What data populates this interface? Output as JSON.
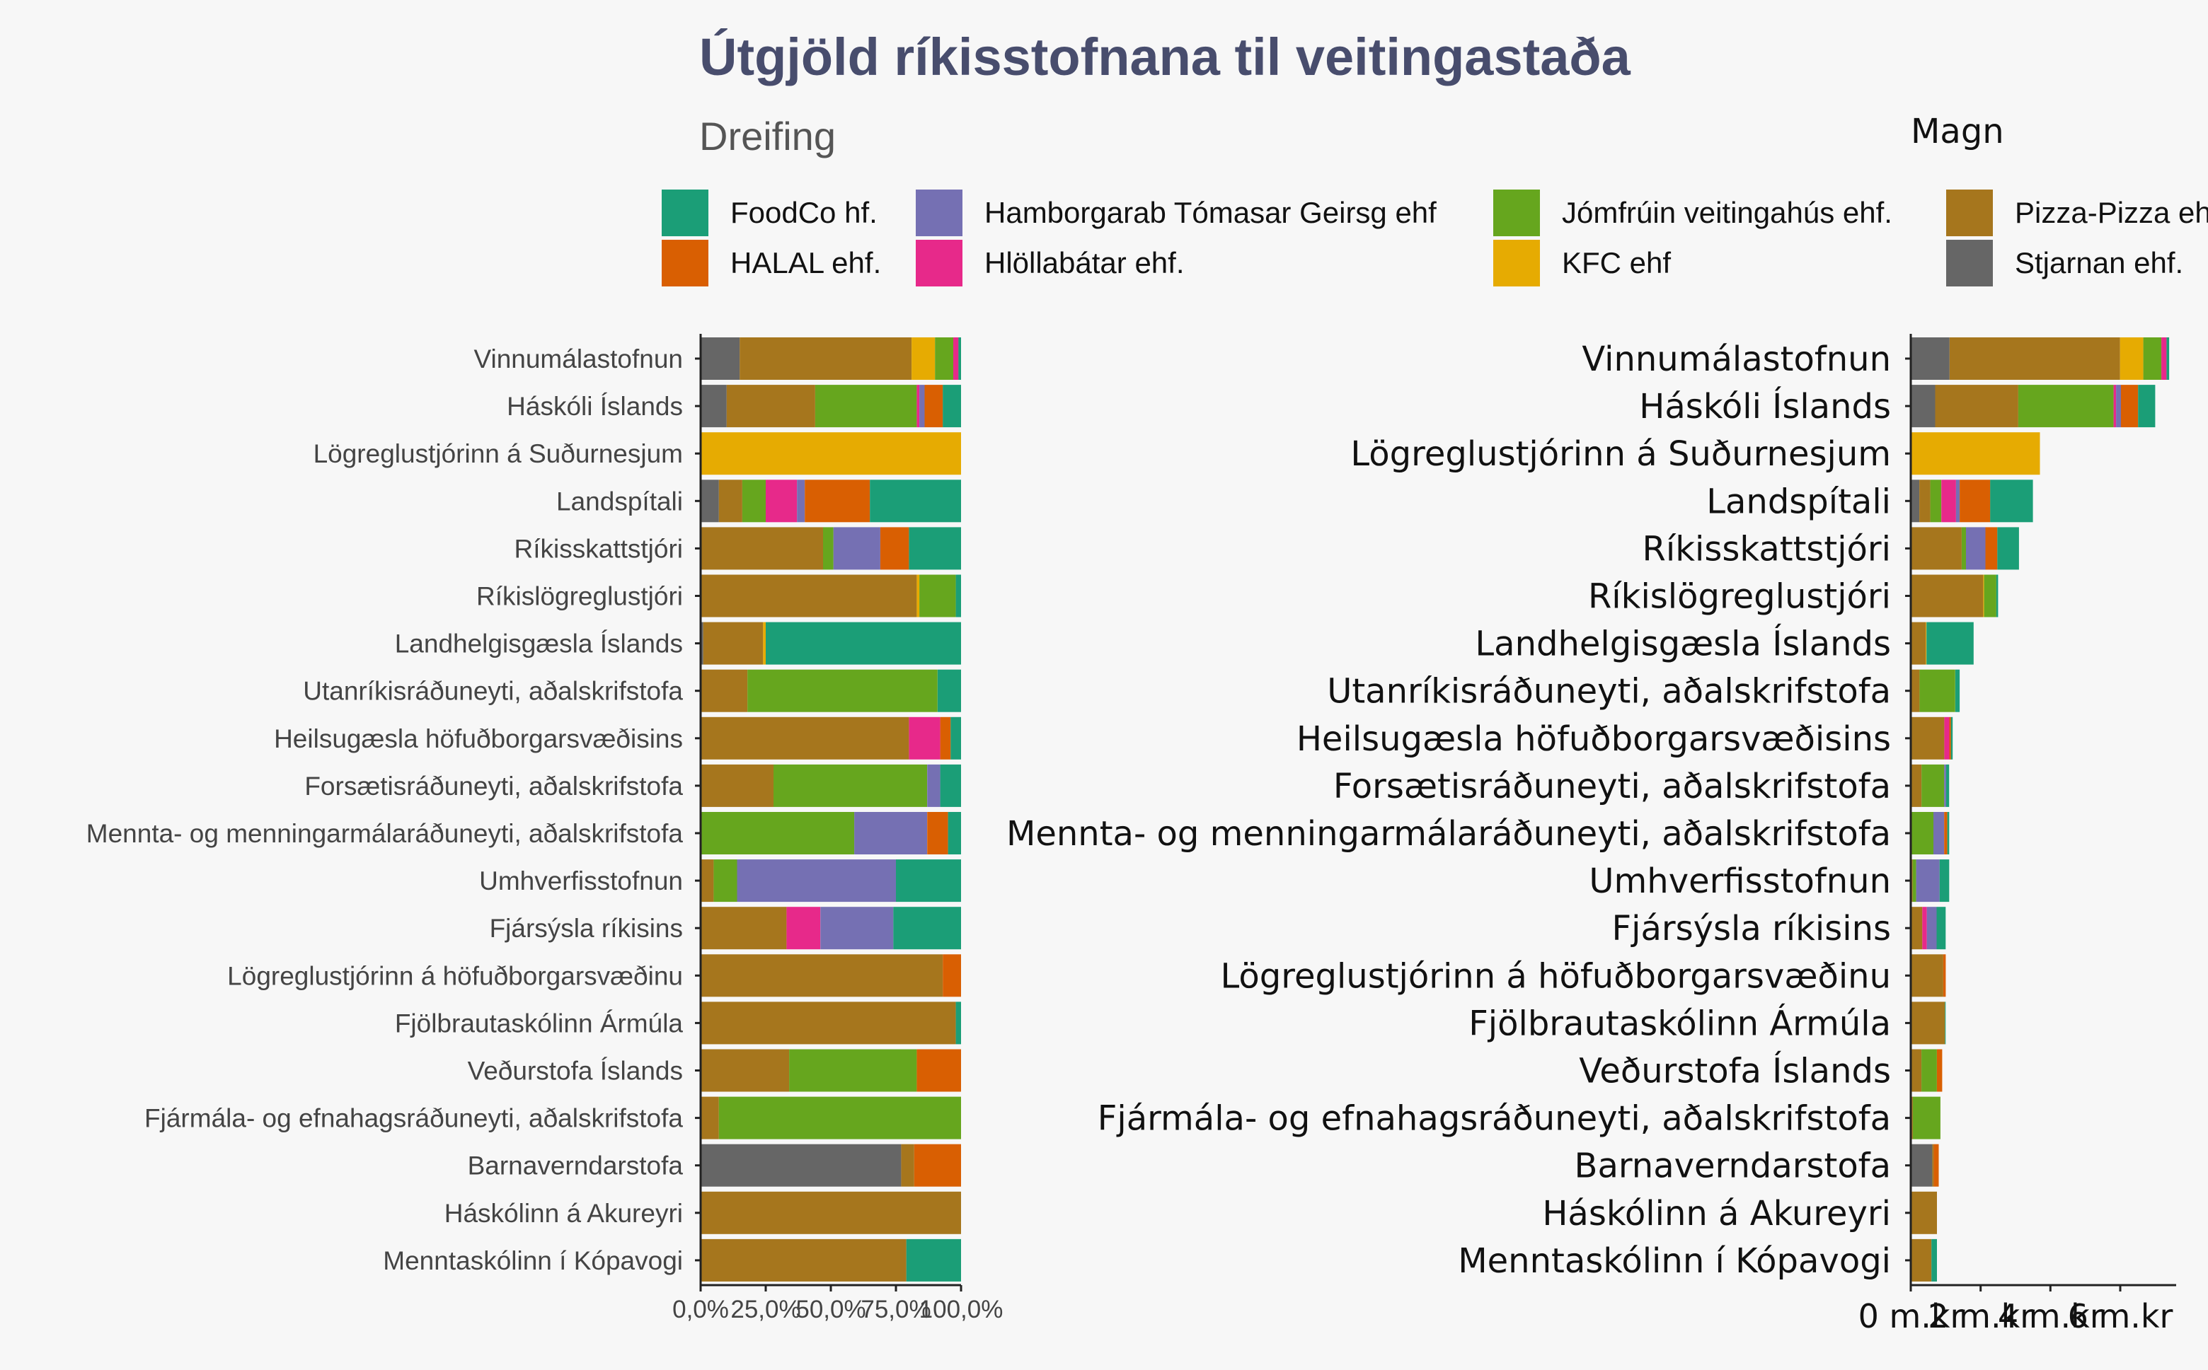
{
  "chart_data": [
    {
      "type": "bar",
      "orientation": "horizontal",
      "stacked": true,
      "normalized": true,
      "title": "Útgjöld ríkisstofnana til veitingastaða",
      "subtitle": "Dreifing",
      "categories": [
        "Vinnumálastofnun",
        "Háskóli Íslands",
        "Lögreglustjórinn á Suðurnesjum",
        "Landspítali",
        "Ríkisskattstjóri",
        "Ríkislögreglustjóri",
        "Landhelgisgæsla Íslands",
        "Utanríkisráðuneyti, aðalskrifstofa",
        "Heilsugæsla höfuðborgarsvæðisins",
        "Forsætisráðuneyti, aðalskrifstofa",
        "Mennta- og menningarmálaráðuneyti, aðalskrifstofa",
        "Umhverfisstofnun",
        "Fjársýsla ríkisins",
        "Lögreglustjórinn á höfuðborgarsvæðinu",
        "Fjölbrautaskólinn Ármúla",
        "Veðurstofa Íslands",
        "Fjármála- og efnahagsráðuneyti, aðalskrifstofa",
        "Barnaverndarstofa",
        "Háskólinn á Akureyri",
        "Menntaskólinn í Kópavogi"
      ],
      "stack_order": [
        "Stjarnan ehf.",
        "Pizza-Pizza ehf",
        "KFC ehf",
        "Jómfrúin veitingahús ehf.",
        "Hlöllabátar ehf.",
        "Hamborgarab Tómasar Geirsg ehf",
        "HALAL ehf.",
        "FoodCo hf."
      ],
      "series": [
        {
          "name": "Stjarnan ehf.",
          "values": [
            0.15,
            0.1,
            0,
            0.07,
            0,
            0,
            0.01,
            0,
            0,
            0,
            0,
            0,
            0,
            0,
            0,
            0,
            0,
            0.77,
            0,
            0
          ]
        },
        {
          "name": "Pizza-Pizza ehf",
          "values": [
            0.66,
            0.34,
            0,
            0.09,
            0.47,
            0.83,
            0.23,
            0.18,
            0.8,
            0.28,
            0,
            0.05,
            0.33,
            0.93,
            0.98,
            0.34,
            0.07,
            0.05,
            1.0,
            0.79
          ]
        },
        {
          "name": "KFC ehf",
          "values": [
            0.09,
            0,
            1.0,
            0,
            0,
            0.01,
            0.01,
            0,
            0,
            0,
            0,
            0,
            0,
            0,
            0,
            0,
            0,
            0,
            0,
            0
          ]
        },
        {
          "name": "Jómfrúin veitingahús ehf.",
          "values": [
            0.07,
            0.39,
            0,
            0.09,
            0.04,
            0.14,
            0,
            0.73,
            0,
            0.59,
            0.59,
            0.09,
            0,
            0,
            0,
            0.49,
            0.93,
            0,
            0,
            0
          ]
        },
        {
          "name": "Hlöllabátar ehf.",
          "values": [
            0.02,
            0.01,
            0,
            0.12,
            0,
            0,
            0,
            0,
            0.12,
            0,
            0,
            0,
            0.13,
            0,
            0,
            0,
            0,
            0,
            0,
            0
          ]
        },
        {
          "name": "Hamborgarab Tómasar Geirsg ehf",
          "values": [
            0,
            0.02,
            0,
            0.03,
            0.18,
            0,
            0,
            0,
            0,
            0.05,
            0.28,
            0.61,
            0.28,
            0,
            0,
            0,
            0,
            0,
            0,
            0
          ]
        },
        {
          "name": "HALAL ehf.",
          "values": [
            0,
            0.07,
            0,
            0.25,
            0.11,
            0,
            0,
            0,
            0.04,
            0,
            0.08,
            0,
            0,
            0.07,
            0,
            0.17,
            0,
            0.18,
            0,
            0
          ]
        },
        {
          "name": "FoodCo hf.",
          "values": [
            0.01,
            0.07,
            0,
            0.35,
            0.2,
            0.02,
            0.75,
            0.09,
            0.04,
            0.08,
            0.05,
            0.25,
            0.26,
            0,
            0.02,
            0,
            0,
            0,
            0,
            0.21
          ]
        }
      ],
      "xlim": [
        0,
        1
      ],
      "x_ticks": [
        "0,0%",
        "25,0%",
        "50,0%",
        "75,0%",
        "100,0%"
      ],
      "legend_position": "top"
    },
    {
      "type": "bar",
      "orientation": "horizontal",
      "stacked": true,
      "title": "Magn",
      "unit": "m.kr",
      "categories_same_as": 0,
      "categories": [
        "Vinnumálastofnun",
        "Háskóli Íslands",
        "Lögreglustjórinn á Suðurnesjum",
        "Landspítali",
        "Ríkisskattstjóri",
        "Ríkislögreglustjóri",
        "Landhelgisgæsla Íslands",
        "Utanríkisráðuneyti, aðalskrifstofa",
        "Heilsugæsla höfuðborgarsvæðisins",
        "Forsætisráðuneyti, aðalskrifstofa",
        "Mennta- og menningarmálaráðuneyti, aðalskrifstofa",
        "Umhverfisstofnun",
        "Fjársýsla ríkisins",
        "Lögreglustjórinn á höfuðborgarsvæðinu",
        "Fjölbrautaskólinn Ármúla",
        "Veðurstofa Íslands",
        "Fjármála- og efnahagsráðuneyti, aðalskrifstofa",
        "Barnaverndarstofa",
        "Háskólinn á Akureyri",
        "Menntaskólinn í Kópavogi"
      ],
      "totals": [
        7.4,
        7.0,
        3.7,
        3.5,
        3.1,
        2.5,
        1.8,
        1.4,
        1.2,
        1.1,
        1.1,
        1.1,
        1.0,
        1.0,
        1.0,
        0.9,
        0.85,
        0.8,
        0.75,
        0.75
      ],
      "xlim": [
        0,
        7.5
      ],
      "x_ticks": [
        "0 m.kr",
        "2 m.kr",
        "4 m.kr",
        "6 m.kr"
      ],
      "x_tick_values": [
        0,
        2,
        4,
        6
      ]
    }
  ],
  "legend": {
    "items": [
      {
        "label": "FoodCo hf.",
        "color": "#1b9e77"
      },
      {
        "label": "HALAL ehf.",
        "color": "#d95f02"
      },
      {
        "label": "Hamborgarab Tómasar Geirsg ehf",
        "color": "#7570b3"
      },
      {
        "label": "Hlöllabátar ehf.",
        "color": "#e7298a"
      },
      {
        "label": "Jómfrúin veitingahús ehf.",
        "color": "#66a61e"
      },
      {
        "label": "KFC ehf",
        "color": "#e6ab02"
      },
      {
        "label": "Pizza-Pizza ehf",
        "color": "#a6761d"
      },
      {
        "label": "Stjarnan ehf.",
        "color": "#666666"
      }
    ]
  },
  "colors": {
    "FoodCo hf.": "#1b9e77",
    "HALAL ehf.": "#d95f02",
    "Hamborgarab Tómasar Geirsg ehf": "#7570b3",
    "Hlöllabátar ehf.": "#e7298a",
    "Jómfrúin veitingahús ehf.": "#66a61e",
    "KFC ehf": "#e6ab02",
    "Pizza-Pizza ehf": "#a6761d",
    "Stjarnan ehf.": "#666666",
    "title": "#484d6d",
    "background": "#f7f7f7"
  }
}
